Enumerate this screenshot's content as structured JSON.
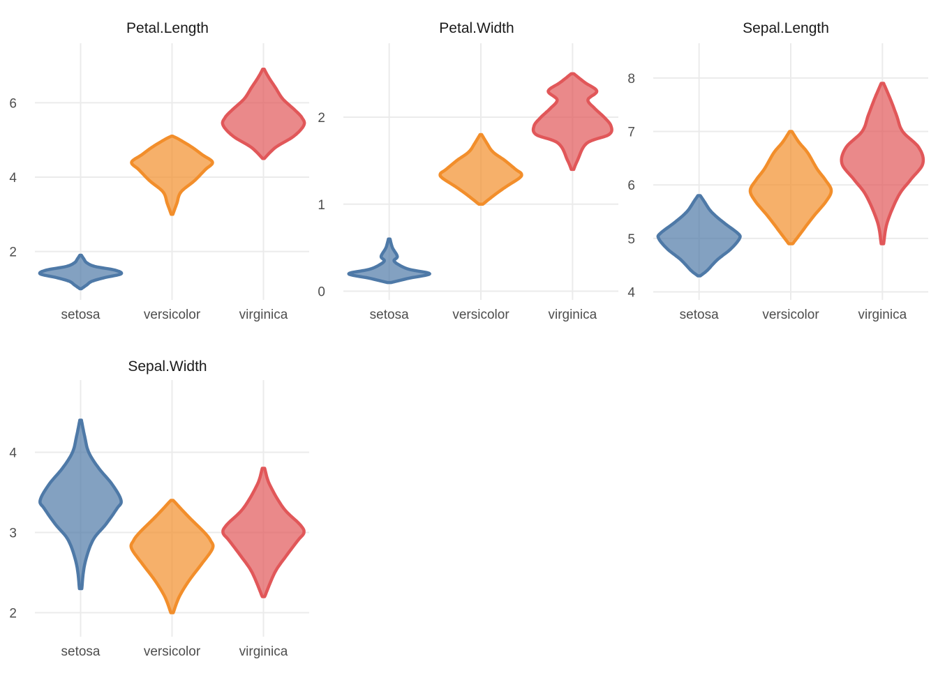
{
  "chart_data": {
    "type": "violin",
    "categories": [
      "setosa",
      "versicolor",
      "virginica"
    ],
    "colors": {
      "setosa": "#4E79A7",
      "versicolor": "#F28E2B",
      "virginica": "#E15759"
    },
    "fill_opacity": 0.7,
    "panels": [
      {
        "title": "Petal.Length",
        "ylim": [
          0.7,
          7.6
        ],
        "y_ticks": [
          2,
          4,
          6
        ],
        "series": [
          {
            "category": "setosa",
            "min": 1.0,
            "max": 1.9,
            "profile": [
              [
                1.0,
                0.02
              ],
              [
                1.1,
                0.15
              ],
              [
                1.2,
                0.28
              ],
              [
                1.3,
                0.6
              ],
              [
                1.4,
                1.0
              ],
              [
                1.5,
                0.85
              ],
              [
                1.6,
                0.35
              ],
              [
                1.7,
                0.15
              ],
              [
                1.8,
                0.08
              ],
              [
                1.9,
                0.02
              ]
            ]
          },
          {
            "category": "versicolor",
            "min": 3.0,
            "max": 5.1,
            "profile": [
              [
                3.0,
                0.02
              ],
              [
                3.3,
                0.12
              ],
              [
                3.6,
                0.22
              ],
              [
                3.9,
                0.55
              ],
              [
                4.2,
                0.82
              ],
              [
                4.4,
                1.0
              ],
              [
                4.6,
                0.75
              ],
              [
                4.8,
                0.5
              ],
              [
                5.0,
                0.2
              ],
              [
                5.1,
                0.02
              ]
            ]
          },
          {
            "category": "virginica",
            "min": 4.5,
            "max": 6.9,
            "profile": [
              [
                4.5,
                0.02
              ],
              [
                4.8,
                0.3
              ],
              [
                5.1,
                0.75
              ],
              [
                5.4,
                1.0
              ],
              [
                5.6,
                0.95
              ],
              [
                5.8,
                0.78
              ],
              [
                6.1,
                0.48
              ],
              [
                6.4,
                0.3
              ],
              [
                6.7,
                0.12
              ],
              [
                6.9,
                0.02
              ]
            ]
          }
        ]
      },
      {
        "title": "Petal.Width",
        "ylim": [
          -0.1,
          2.85
        ],
        "y_ticks": [
          0,
          1,
          2
        ],
        "series": [
          {
            "category": "setosa",
            "min": 0.1,
            "max": 0.6,
            "profile": [
              [
                0.1,
                0.05
              ],
              [
                0.15,
                0.5
              ],
              [
                0.2,
                1.0
              ],
              [
                0.25,
                0.5
              ],
              [
                0.3,
                0.25
              ],
              [
                0.35,
                0.12
              ],
              [
                0.4,
                0.2
              ],
              [
                0.5,
                0.08
              ],
              [
                0.6,
                0.02
              ]
            ]
          },
          {
            "category": "versicolor",
            "min": 1.0,
            "max": 1.8,
            "profile": [
              [
                1.0,
                0.05
              ],
              [
                1.1,
                0.32
              ],
              [
                1.2,
                0.62
              ],
              [
                1.3,
                0.95
              ],
              [
                1.35,
                1.0
              ],
              [
                1.4,
                0.86
              ],
              [
                1.5,
                0.6
              ],
              [
                1.6,
                0.3
              ],
              [
                1.7,
                0.15
              ],
              [
                1.8,
                0.02
              ]
            ]
          },
          {
            "category": "virginica",
            "min": 1.4,
            "max": 2.5,
            "profile": [
              [
                1.4,
                0.03
              ],
              [
                1.5,
                0.12
              ],
              [
                1.7,
                0.35
              ],
              [
                1.8,
                0.9
              ],
              [
                1.9,
                0.95
              ],
              [
                2.0,
                0.78
              ],
              [
                2.1,
                0.55
              ],
              [
                2.2,
                0.38
              ],
              [
                2.3,
                0.6
              ],
              [
                2.4,
                0.3
              ],
              [
                2.5,
                0.03
              ]
            ]
          }
        ]
      },
      {
        "title": "Sepal.Length",
        "ylim": [
          3.85,
          8.65
        ],
        "y_ticks": [
          4,
          5,
          6,
          7,
          8
        ],
        "series": [
          {
            "category": "setosa",
            "min": 4.3,
            "max": 5.8,
            "profile": [
              [
                4.3,
                0.03
              ],
              [
                4.4,
                0.2
              ],
              [
                4.6,
                0.45
              ],
              [
                4.8,
                0.78
              ],
              [
                5.0,
                1.0
              ],
              [
                5.1,
                0.95
              ],
              [
                5.3,
                0.6
              ],
              [
                5.5,
                0.3
              ],
              [
                5.7,
                0.12
              ],
              [
                5.8,
                0.03
              ]
            ]
          },
          {
            "category": "versicolor",
            "min": 4.9,
            "max": 7.0,
            "profile": [
              [
                4.9,
                0.05
              ],
              [
                5.1,
                0.25
              ],
              [
                5.4,
                0.55
              ],
              [
                5.7,
                0.88
              ],
              [
                5.9,
                1.0
              ],
              [
                6.1,
                0.85
              ],
              [
                6.3,
                0.65
              ],
              [
                6.6,
                0.42
              ],
              [
                6.8,
                0.2
              ],
              [
                7.0,
                0.03
              ]
            ]
          },
          {
            "category": "virginica",
            "min": 4.9,
            "max": 7.9,
            "profile": [
              [
                4.9,
                0.03
              ],
              [
                5.3,
                0.12
              ],
              [
                5.8,
                0.4
              ],
              [
                6.1,
                0.7
              ],
              [
                6.4,
                1.0
              ],
              [
                6.7,
                0.9
              ],
              [
                7.0,
                0.5
              ],
              [
                7.3,
                0.35
              ],
              [
                7.6,
                0.2
              ],
              [
                7.9,
                0.03
              ]
            ]
          }
        ]
      },
      {
        "title": "Sepal.Width",
        "ylim": [
          1.7,
          4.9
        ],
        "y_ticks": [
          2,
          3,
          4
        ],
        "series": [
          {
            "category": "setosa",
            "min": 2.3,
            "max": 4.4,
            "profile": [
              [
                2.3,
                0.03
              ],
              [
                2.6,
                0.1
              ],
              [
                2.9,
                0.3
              ],
              [
                3.1,
                0.62
              ],
              [
                3.3,
                0.9
              ],
              [
                3.4,
                1.0
              ],
              [
                3.6,
                0.78
              ],
              [
                3.8,
                0.45
              ],
              [
                4.0,
                0.2
              ],
              [
                4.2,
                0.1
              ],
              [
                4.4,
                0.02
              ]
            ]
          },
          {
            "category": "versicolor",
            "min": 2.0,
            "max": 3.4,
            "profile": [
              [
                2.0,
                0.03
              ],
              [
                2.2,
                0.18
              ],
              [
                2.4,
                0.42
              ],
              [
                2.6,
                0.72
              ],
              [
                2.8,
                1.0
              ],
              [
                2.9,
                0.95
              ],
              [
                3.0,
                0.8
              ],
              [
                3.2,
                0.4
              ],
              [
                3.4,
                0.03
              ]
            ]
          },
          {
            "category": "virginica",
            "min": 2.2,
            "max": 3.8,
            "profile": [
              [
                2.2,
                0.03
              ],
              [
                2.5,
                0.28
              ],
              [
                2.7,
                0.55
              ],
              [
                2.9,
                0.85
              ],
              [
                3.0,
                1.0
              ],
              [
                3.1,
                0.9
              ],
              [
                3.3,
                0.5
              ],
              [
                3.6,
                0.15
              ],
              [
                3.8,
                0.03
              ]
            ]
          }
        ]
      }
    ]
  }
}
